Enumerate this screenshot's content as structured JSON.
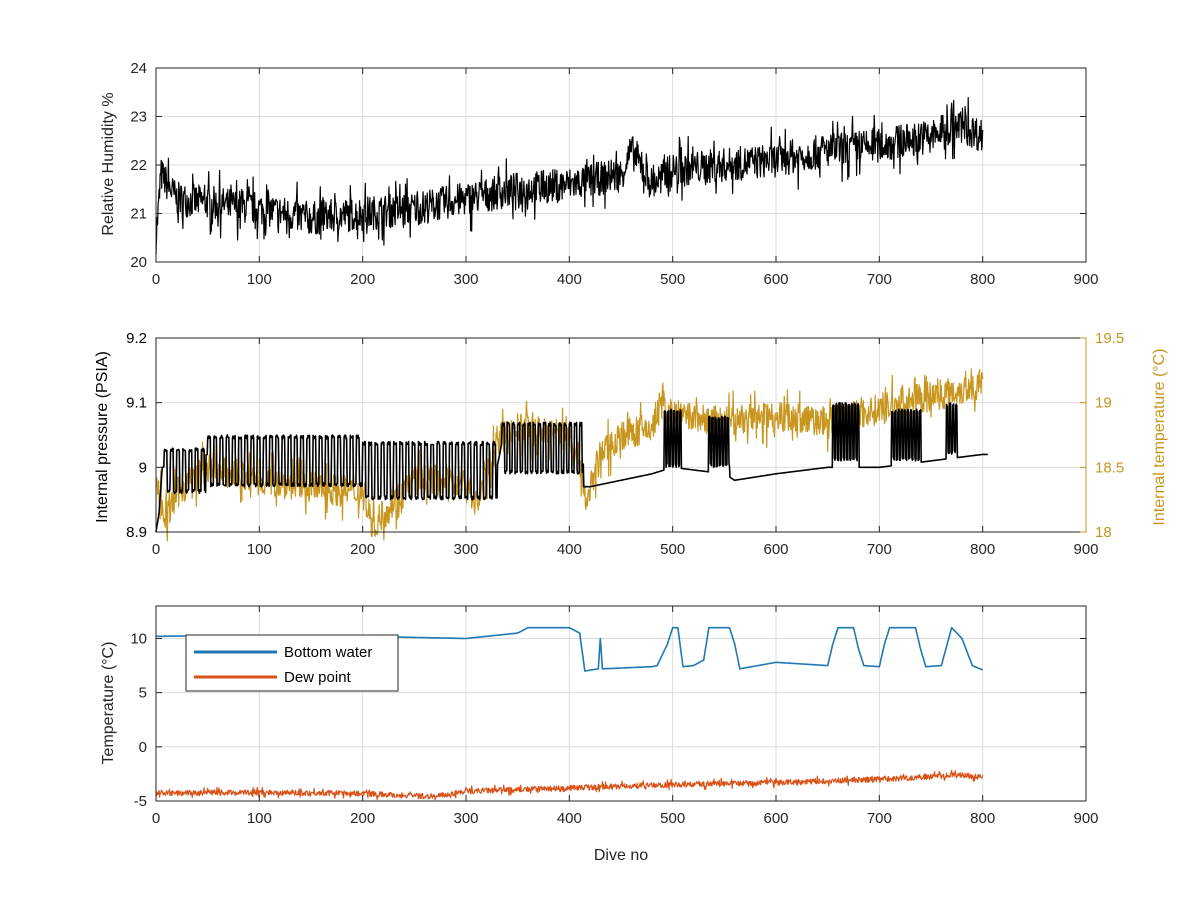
{
  "colors": {
    "black": "#000000",
    "gold": "#c8961e",
    "blue": "#1f77b4",
    "orange": "#d95319"
  },
  "chart_data": [
    {
      "type": "line",
      "title": "",
      "xlabel": "",
      "ylabel": "Relative Humidity %",
      "xlim": [
        0,
        900
      ],
      "ylim": [
        20,
        24
      ],
      "xticks": [
        0,
        100,
        200,
        300,
        400,
        500,
        600,
        700,
        800,
        900
      ],
      "yticks": [
        20,
        21,
        22,
        23,
        24
      ],
      "grid": true,
      "series": [
        {
          "color": "#000000",
          "noise": 0.35,
          "x": [
            0,
            5,
            20,
            60,
            100,
            150,
            200,
            250,
            300,
            350,
            400,
            450,
            460,
            480,
            500,
            550,
            600,
            650,
            700,
            750,
            780,
            800
          ],
          "y": [
            20.5,
            21.8,
            21.3,
            21.2,
            21.1,
            20.9,
            21.0,
            21.1,
            21.3,
            21.5,
            21.6,
            21.8,
            22.3,
            21.6,
            21.9,
            22.0,
            22.1,
            22.3,
            22.4,
            22.6,
            22.8,
            22.6
          ]
        }
      ]
    },
    {
      "type": "line",
      "title": "",
      "xlabel": "",
      "ylabel": "Internal pressure (PSIA)",
      "y2label": "Internal temperature (°C)",
      "xlim": [
        0,
        900
      ],
      "ylim": [
        8.9,
        9.2
      ],
      "y2lim": [
        18,
        19.5
      ],
      "xticks": [
        0,
        100,
        200,
        300,
        400,
        500,
        600,
        700,
        800,
        900
      ],
      "yticks": [
        8.9,
        9.0,
        9.1,
        9.2
      ],
      "yticklabels": [
        "8.9",
        "9",
        "9.1",
        "9.2"
      ],
      "y2ticks": [
        18,
        18.5,
        19,
        19.5
      ],
      "grid": true,
      "series": [
        {
          "axis": "right",
          "color": "#c8961e",
          "noise": 0.12,
          "x": [
            0,
            10,
            20,
            50,
            100,
            150,
            200,
            210,
            250,
            300,
            310,
            330,
            350,
            400,
            412,
            415,
            430,
            450,
            480,
            490,
            500,
            550,
            600,
            650,
            700,
            750,
            780,
            800
          ],
          "y": [
            18.4,
            18.1,
            18.3,
            18.5,
            18.4,
            18.35,
            18.3,
            18.05,
            18.4,
            18.4,
            18.2,
            18.7,
            18.8,
            18.75,
            18.5,
            18.2,
            18.6,
            18.75,
            18.8,
            19.0,
            18.9,
            18.85,
            18.9,
            18.85,
            18.95,
            19.05,
            19.1,
            19.15
          ]
        },
        {
          "axis": "left",
          "color": "#000000",
          "x": [
            0,
            3,
            6,
            50,
            200,
            330,
            335,
            413,
            414,
            420,
            480,
            500,
            550,
            560,
            600,
            650,
            700,
            750,
            800,
            805
          ],
          "y": [
            8.9,
            8.93,
            9.0,
            9.02,
            9.01,
            9.0,
            9.04,
            9.04,
            8.97,
            8.97,
            8.99,
            9.0,
            8.99,
            8.98,
            8.99,
            9.0,
            9.0,
            9.01,
            9.02,
            9.02
          ],
          "oscillations": [
            {
              "from": 8,
              "to": 48,
              "lo": 8.96,
              "hi": 9.03,
              "period": 6
            },
            {
              "from": 50,
              "to": 200,
              "lo": 8.97,
              "hi": 9.05,
              "period": 6
            },
            {
              "from": 200,
              "to": 330,
              "lo": 8.95,
              "hi": 9.04,
              "period": 6
            },
            {
              "from": 335,
              "to": 413,
              "lo": 8.99,
              "hi": 9.07,
              "period": 5
            },
            {
              "from": 492,
              "to": 508,
              "lo": 9.0,
              "hi": 9.09,
              "period": 3
            },
            {
              "from": 535,
              "to": 555,
              "lo": 9.0,
              "hi": 9.08,
              "period": 3
            },
            {
              "from": 655,
              "to": 680,
              "lo": 9.01,
              "hi": 9.1,
              "period": 3
            },
            {
              "from": 712,
              "to": 740,
              "lo": 9.01,
              "hi": 9.09,
              "period": 3
            },
            {
              "from": 765,
              "to": 775,
              "lo": 9.02,
              "hi": 9.1,
              "period": 3
            }
          ]
        }
      ]
    },
    {
      "type": "line",
      "title": "",
      "xlabel": "Dive no",
      "ylabel": "Temperature (°C)",
      "xlim": [
        0,
        900
      ],
      "ylim": [
        -5,
        13
      ],
      "xticks": [
        0,
        100,
        200,
        300,
        400,
        500,
        600,
        700,
        800,
        900
      ],
      "yticks": [
        -5,
        0,
        5,
        10
      ],
      "grid": true,
      "legend": {
        "position": "top-left",
        "entries": [
          "Bottom water",
          "Dew point"
        ]
      },
      "series": [
        {
          "name": "Bottom water",
          "color": "#1f77b4",
          "x": [
            0,
            100,
            200,
            300,
            350,
            360,
            400,
            410,
            415,
            428,
            430,
            432,
            480,
            485,
            495,
            500,
            505,
            510,
            520,
            530,
            535,
            555,
            560,
            565,
            600,
            650,
            655,
            660,
            675,
            680,
            685,
            700,
            705,
            710,
            735,
            740,
            745,
            760,
            770,
            780,
            790,
            800
          ],
          "y": [
            10.2,
            10.3,
            10.2,
            10.0,
            10.5,
            11.0,
            11.0,
            10.5,
            7.0,
            7.2,
            10.0,
            7.2,
            7.4,
            7.5,
            9.5,
            11.0,
            11.0,
            7.4,
            7.5,
            8.0,
            11.0,
            11.0,
            9.5,
            7.2,
            7.8,
            7.5,
            9.5,
            11.0,
            11.0,
            9.0,
            7.5,
            7.4,
            9.5,
            11.0,
            11.0,
            9.0,
            7.4,
            7.5,
            11.0,
            10.0,
            7.5,
            7.1
          ]
        },
        {
          "name": "Dew point",
          "color": "#d95319",
          "noise": 0.25,
          "x": [
            0,
            100,
            200,
            270,
            300,
            400,
            500,
            600,
            700,
            780,
            800
          ],
          "y": [
            -4.3,
            -4.2,
            -4.3,
            -4.6,
            -4.1,
            -3.8,
            -3.5,
            -3.3,
            -3.0,
            -2.6,
            -2.8
          ]
        }
      ]
    }
  ]
}
